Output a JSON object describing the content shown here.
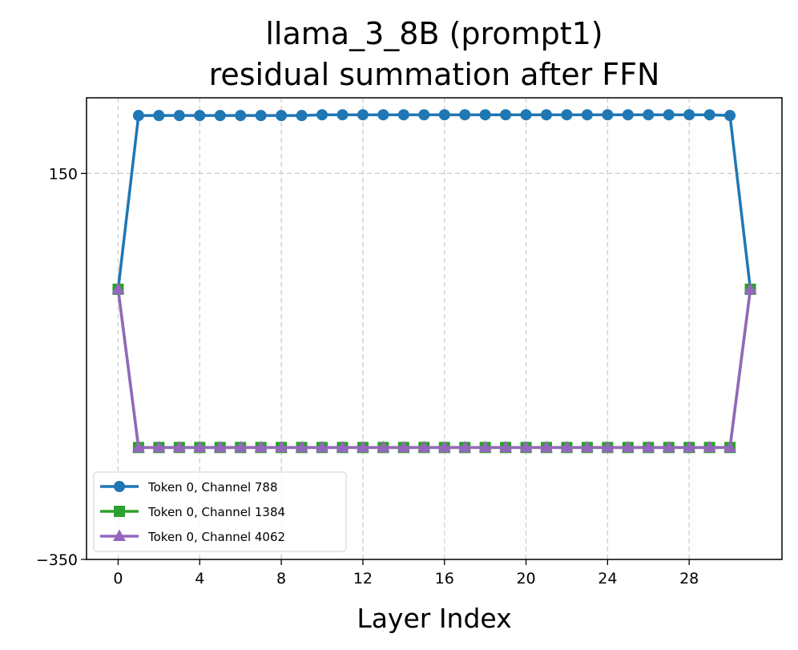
{
  "chart_data": {
    "type": "line",
    "title": [
      "llama_3_8B (prompt1)",
      "residual summation after FFN"
    ],
    "x_label": "Layer Index",
    "x": [
      0,
      1,
      2,
      3,
      4,
      5,
      6,
      7,
      8,
      9,
      10,
      11,
      12,
      13,
      14,
      15,
      16,
      17,
      18,
      19,
      20,
      21,
      22,
      23,
      24,
      25,
      26,
      27,
      28,
      29,
      30,
      31
    ],
    "series": [
      {
        "name": "Token 0, Channel 788",
        "color": "#1f77b4",
        "marker": "circle",
        "values": [
          0,
          225,
          225,
          225,
          225,
          225,
          225,
          225,
          225,
          225,
          226,
          226,
          226,
          226,
          226,
          226,
          226,
          226,
          226,
          226,
          226,
          226,
          226,
          226,
          226,
          226,
          226,
          226,
          226,
          226,
          225,
          0
        ]
      },
      {
        "name": "Token 0, Channel 1384",
        "color": "#2ca02c",
        "marker": "square",
        "values": [
          0,
          -205,
          -205,
          -205,
          -205,
          -205,
          -205,
          -205,
          -205,
          -205,
          -205,
          -205,
          -205,
          -205,
          -205,
          -205,
          -205,
          -205,
          -205,
          -205,
          -205,
          -205,
          -205,
          -205,
          -205,
          -205,
          -205,
          -205,
          -205,
          -205,
          -205,
          0
        ]
      },
      {
        "name": "Token 0, Channel 4062",
        "color": "#9467bd",
        "marker": "triangle",
        "values": [
          0,
          -205,
          -205,
          -205,
          -205,
          -205,
          -205,
          -205,
          -205,
          -205,
          -205,
          -205,
          -205,
          -205,
          -205,
          -205,
          -205,
          -205,
          -205,
          -205,
          -205,
          -205,
          -205,
          -205,
          -205,
          -205,
          -205,
          -205,
          -205,
          -205,
          -205,
          0
        ]
      }
    ],
    "xlim": [
      -1.55,
      32.55
    ],
    "xticks": [
      0,
      4,
      8,
      12,
      16,
      20,
      24,
      28
    ],
    "ylim": [
      -350,
      248
    ],
    "yticks": [
      {
        "value": -350,
        "label": "−350"
      },
      150
    ],
    "grid": true,
    "legend": "lower left"
  }
}
